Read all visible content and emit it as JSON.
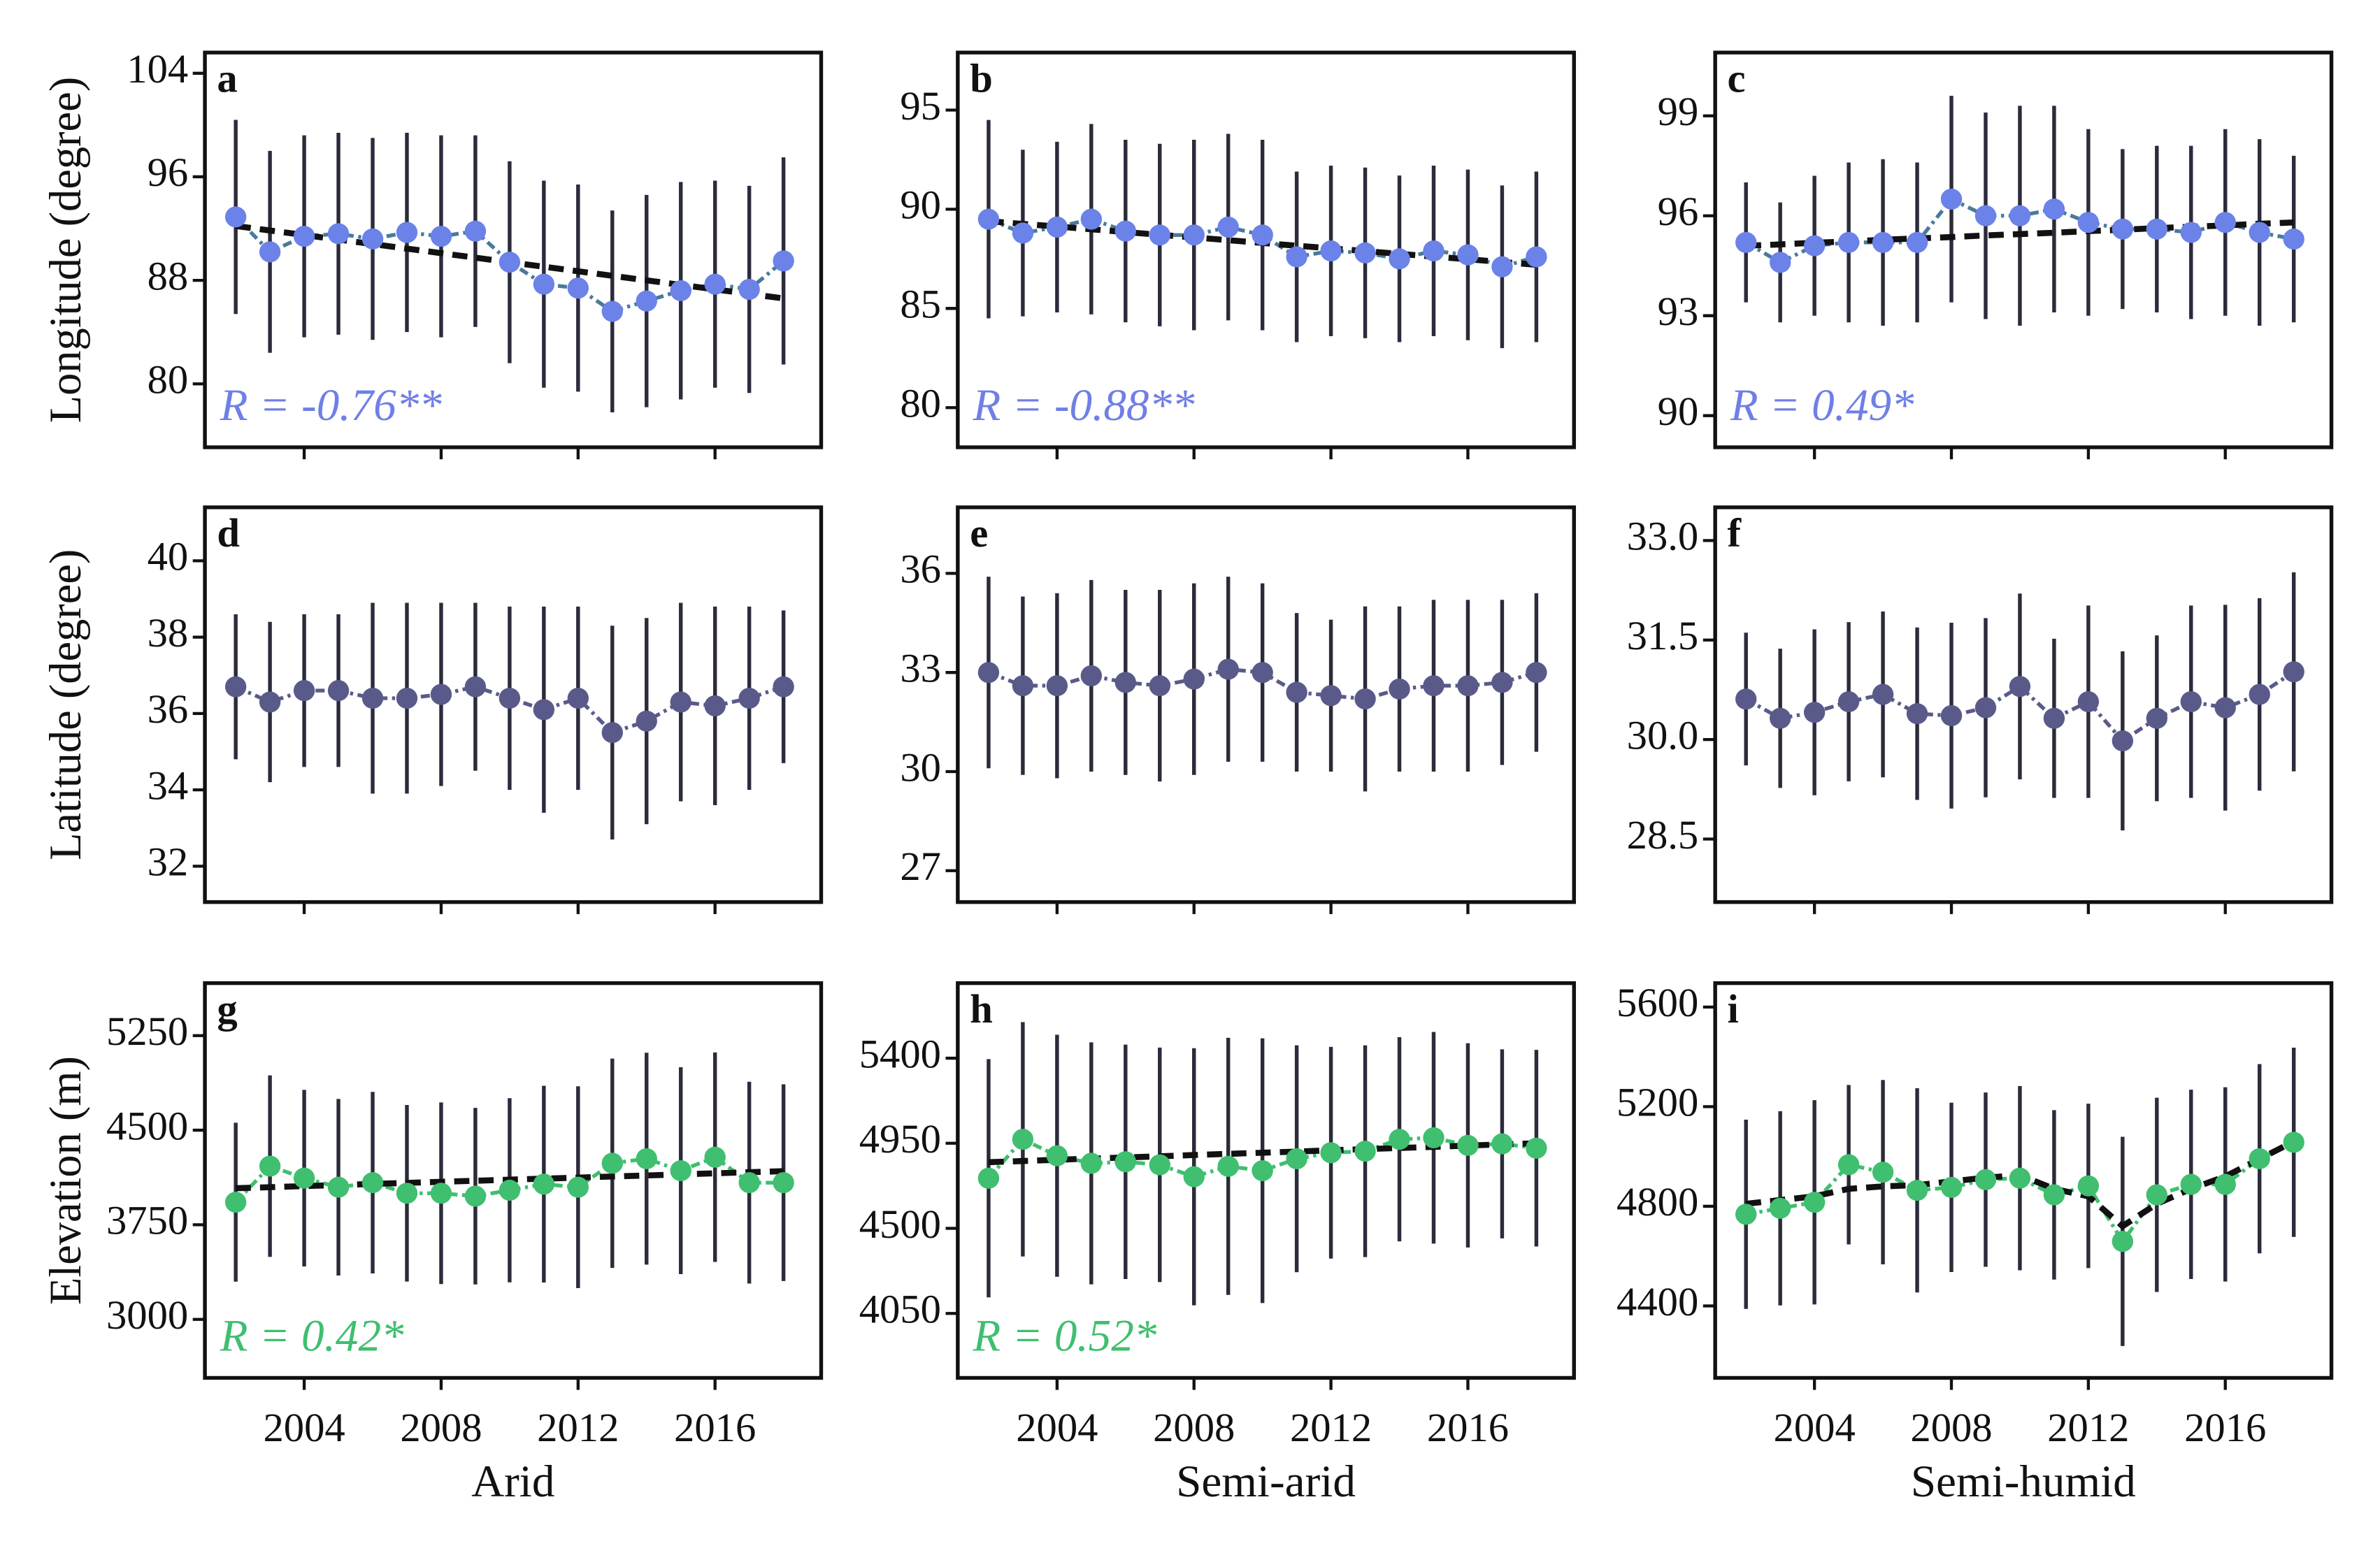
{
  "chart_data": [
    {
      "type": "line",
      "label": "a",
      "ylabel": "Longitude (degree)",
      "annotation": "R = -0.76**",
      "annotation_color": "#6f7fe6",
      "color": "#6b82e8",
      "line_color": "#4a7a9a",
      "x": [
        2002,
        2003,
        2004,
        2005,
        2006,
        2007,
        2008,
        2009,
        2010,
        2011,
        2012,
        2013,
        2014,
        2015,
        2016,
        2017,
        2018
      ],
      "xlim": [
        2001.1,
        2019.1
      ],
      "xticks": [
        2004,
        2008,
        2012,
        2016
      ],
      "xtick_labels": false,
      "ylim": [
        75.1,
        105.6
      ],
      "yticks": [
        80,
        88,
        96,
        104
      ],
      "values": [
        92.9,
        90.2,
        91.4,
        91.6,
        91.2,
        91.7,
        91.4,
        91.8,
        89.4,
        87.7,
        87.4,
        85.6,
        86.4,
        87.2,
        87.7,
        87.3,
        89.5
      ],
      "errors": [
        7.5,
        7.8,
        7.8,
        7.8,
        7.8,
        7.7,
        7.8,
        7.4,
        7.8,
        8,
        8,
        7.8,
        8.2,
        8.4,
        8,
        8,
        8
      ],
      "trend": [
        92.2,
        91.85,
        91.5,
        91.15,
        90.8,
        90.45,
        90.1,
        89.75,
        89.4,
        89.05,
        88.7,
        88.35,
        88.0,
        87.65,
        87.3,
        86.95,
        86.6
      ]
    },
    {
      "type": "line",
      "label": "b",
      "annotation": "R = -0.88**",
      "annotation_color": "#6f7fe6",
      "color": "#6b82e8",
      "line_color": "#4a7a9a",
      "x": [
        2002,
        2003,
        2004,
        2005,
        2006,
        2007,
        2008,
        2009,
        2010,
        2011,
        2012,
        2013,
        2014,
        2015,
        2016,
        2017,
        2018
      ],
      "xlim": [
        2001.1,
        2019.1
      ],
      "xticks": [
        2004,
        2008,
        2012,
        2016
      ],
      "xtick_labels": false,
      "ylim": [
        78.0,
        97.9
      ],
      "yticks": [
        80,
        85,
        90,
        95
      ],
      "values": [
        89.5,
        88.8,
        89.1,
        89.5,
        88.9,
        88.7,
        88.7,
        89.1,
        88.7,
        87.6,
        87.9,
        87.8,
        87.5,
        87.9,
        87.7,
        87.1,
        87.6
      ],
      "errors": [
        5,
        4.2,
        4.3,
        4.8,
        4.6,
        4.6,
        4.8,
        4.7,
        4.8,
        4.3,
        4.3,
        4.3,
        4.2,
        4.3,
        4.3,
        4.1,
        4.3
      ],
      "trend": [
        89.4,
        89.26,
        89.13,
        88.99,
        88.85,
        88.71,
        88.58,
        88.44,
        88.3,
        88.16,
        88.03,
        87.89,
        87.75,
        87.61,
        87.48,
        87.34,
        87.2
      ]
    },
    {
      "type": "line",
      "label": "c",
      "annotation": "R = 0.49*",
      "annotation_color": "#6f7fe6",
      "color": "#6b82e8",
      "line_color": "#4a7a9a",
      "x": [
        2002,
        2003,
        2004,
        2005,
        2006,
        2007,
        2008,
        2009,
        2010,
        2011,
        2012,
        2013,
        2014,
        2015,
        2016,
        2017,
        2018
      ],
      "xlim": [
        2001.1,
        2019.1
      ],
      "xticks": [
        2004,
        2008,
        2012,
        2016
      ],
      "xtick_labels": false,
      "ylim": [
        89.05,
        100.9
      ],
      "yticks": [
        90,
        93,
        96,
        99
      ],
      "values": [
        95.2,
        94.6,
        95.1,
        95.2,
        95.2,
        95.2,
        96.5,
        96.0,
        96.0,
        96.2,
        95.8,
        95.6,
        95.6,
        95.5,
        95.8,
        95.5,
        95.3
      ],
      "errors": [
        1.8,
        1.8,
        2.1,
        2.4,
        2.5,
        2.4,
        3.1,
        3.1,
        3.3,
        3.1,
        2.8,
        2.4,
        2.5,
        2.6,
        2.8,
        2.8,
        2.5
      ],
      "trend": [
        95.1,
        95.14,
        95.19,
        95.23,
        95.28,
        95.32,
        95.36,
        95.41,
        95.45,
        95.49,
        95.54,
        95.58,
        95.63,
        95.67,
        95.71,
        95.76,
        95.8
      ]
    },
    {
      "type": "line",
      "label": "d",
      "ylabel": "Latitude (degree)",
      "color": "#5a5a8a",
      "line_color": "#5a5a8a",
      "x": [
        2002,
        2003,
        2004,
        2005,
        2006,
        2007,
        2008,
        2009,
        2010,
        2011,
        2012,
        2013,
        2014,
        2015,
        2016,
        2017,
        2018
      ],
      "xlim": [
        2001.1,
        2019.1
      ],
      "xticks": [
        2004,
        2008,
        2012,
        2016
      ],
      "xtick_labels": false,
      "ylim": [
        31.06,
        41.4
      ],
      "yticks": [
        32,
        34,
        36,
        38,
        40
      ],
      "values": [
        36.7,
        36.3,
        36.6,
        36.6,
        36.4,
        36.4,
        36.5,
        36.7,
        36.4,
        36.1,
        36.4,
        35.5,
        35.8,
        36.3,
        36.2,
        36.4,
        36.7
      ],
      "errors": [
        1.9,
        2.1,
        2,
        2,
        2.5,
        2.5,
        2.4,
        2.2,
        2.4,
        2.7,
        2.4,
        2.8,
        2.7,
        2.6,
        2.6,
        2.4,
        2
      ]
    },
    {
      "type": "line",
      "label": "e",
      "color": "#5a5a8a",
      "line_color": "#5a5a8a",
      "x": [
        2002,
        2003,
        2004,
        2005,
        2006,
        2007,
        2008,
        2009,
        2010,
        2011,
        2012,
        2013,
        2014,
        2015,
        2016,
        2017,
        2018
      ],
      "xlim": [
        2001.1,
        2019.1
      ],
      "xticks": [
        2004,
        2008,
        2012,
        2016
      ],
      "xtick_labels": false,
      "ylim": [
        26.05,
        38.0
      ],
      "yticks": [
        27,
        30,
        33,
        36
      ],
      "values": [
        33.0,
        32.6,
        32.6,
        32.9,
        32.7,
        32.6,
        32.8,
        33.1,
        33.0,
        32.4,
        32.3,
        32.2,
        32.5,
        32.6,
        32.6,
        32.7,
        33.0
      ],
      "errors": [
        2.9,
        2.7,
        2.8,
        2.9,
        2.8,
        2.9,
        2.9,
        2.8,
        2.7,
        2.4,
        2.3,
        2.8,
        2.5,
        2.6,
        2.6,
        2.5,
        2.4
      ]
    },
    {
      "type": "line",
      "label": "f",
      "color": "#5a5a8a",
      "line_color": "#5a5a8a",
      "x": [
        2002,
        2003,
        2004,
        2005,
        2006,
        2007,
        2008,
        2009,
        2010,
        2011,
        2012,
        2013,
        2014,
        2015,
        2016,
        2017,
        2018
      ],
      "xlim": [
        2001.1,
        2019.1
      ],
      "xticks": [
        2004,
        2008,
        2012,
        2016
      ],
      "xtick_labels": false,
      "ylim": [
        27.55,
        33.5
      ],
      "yticks": [
        28.5,
        {
          "value": 30,
          "label": "30.0"
        },
        31.5,
        {
          "value": 33,
          "label": "33.0"
        }
      ],
      "values": [
        30.61,
        30.32,
        30.41,
        30.57,
        30.68,
        30.39,
        30.36,
        30.48,
        30.8,
        30.32,
        30.57,
        29.98,
        30.32,
        30.57,
        30.48,
        30.68,
        31.02
      ],
      "errors": [
        1.0,
        1.05,
        1.25,
        1.2,
        1.25,
        1.3,
        1.4,
        1.35,
        1.4,
        1.2,
        1.45,
        1.35,
        1.25,
        1.45,
        1.55,
        1.45,
        1.5
      ]
    },
    {
      "type": "line",
      "label": "g",
      "ylabel": "Elevation (m)",
      "xlabel": "Arid",
      "annotation": "R = 0.42*",
      "annotation_color": "#3fbf6f",
      "color": "#3fbf6f",
      "line_color": "#3fbf6f",
      "x": [
        2002,
        2003,
        2004,
        2005,
        2006,
        2007,
        2008,
        2009,
        2010,
        2011,
        2012,
        2013,
        2014,
        2015,
        2016,
        2017,
        2018
      ],
      "xlim": [
        2001.1,
        2019.1
      ],
      "xticks": [
        2004,
        2008,
        2012,
        2016
      ],
      "xtick_labels": true,
      "ylim": [
        2536,
        5666
      ],
      "yticks": [
        3000,
        3750,
        4500,
        5250
      ],
      "values": [
        3929,
        4215,
        4120,
        4048,
        4084,
        4000,
        4000,
        3977,
        4024,
        4072,
        4048,
        4238,
        4274,
        4179,
        4286,
        4084,
        4084
      ],
      "errors": [
        630,
        720,
        700,
        700,
        720,
        700,
        720,
        700,
        730,
        780,
        800,
        830,
        840,
        820,
        830,
        800,
        780
      ],
      "trend": [
        4040,
        4048,
        4057,
        4065,
        4074,
        4082,
        4091,
        4099,
        4108,
        4116,
        4124,
        4133,
        4141,
        4150,
        4158,
        4167,
        4175
      ]
    },
    {
      "type": "line",
      "label": "h",
      "xlabel": "Semi-arid",
      "annotation": "R = 0.52*",
      "annotation_color": "#3fbf6f",
      "color": "#3fbf6f",
      "line_color": "#3fbf6f",
      "x": [
        2002,
        2003,
        2004,
        2005,
        2006,
        2007,
        2008,
        2009,
        2010,
        2011,
        2012,
        2013,
        2014,
        2015,
        2016,
        2017,
        2018
      ],
      "xlim": [
        2001.1,
        2019.1
      ],
      "xticks": [
        2004,
        2008,
        2012,
        2016
      ],
      "xtick_labels": true,
      "ylim": [
        3709,
        5797
      ],
      "yticks": [
        4050,
        4500,
        4950,
        5400
      ],
      "values": [
        4765,
        4971,
        4884,
        4844,
        4852,
        4836,
        4773,
        4828,
        4805,
        4868,
        4900,
        4908,
        4971,
        4979,
        4939,
        4947,
        4924
      ],
      "errors": [
        630,
        620,
        640,
        640,
        620,
        620,
        680,
        680,
        700,
        600,
        560,
        560,
        540,
        560,
        540,
        500,
        520
      ],
      "trend": [
        4850,
        4856,
        4863,
        4869,
        4875,
        4881,
        4888,
        4894,
        4900,
        4906,
        4913,
        4919,
        4925,
        4931,
        4938,
        4944,
        4950
      ]
    },
    {
      "type": "line",
      "label": "i",
      "xlabel": "Semi-humid",
      "color": "#3fbf6f",
      "line_color": "#3fbf6f",
      "x": [
        2002,
        2003,
        2004,
        2005,
        2006,
        2007,
        2008,
        2009,
        2010,
        2011,
        2012,
        2013,
        2014,
        2015,
        2016,
        2017,
        2018
      ],
      "xlim": [
        2001.1,
        2019.1
      ],
      "xticks": [
        2004,
        2008,
        2012,
        2016
      ],
      "xtick_labels": true,
      "ylim": [
        4111,
        5696
      ],
      "yticks": [
        4400,
        4800,
        5200,
        5600
      ],
      "values": [
        4768,
        4792,
        4816,
        4967,
        4937,
        4864,
        4876,
        4907,
        4913,
        4846,
        4882,
        4659,
        4846,
        4888,
        4888,
        4991,
        5057
      ],
      "errors": [
        380,
        390,
        410,
        320,
        370,
        410,
        340,
        350,
        370,
        340,
        330,
        420,
        390,
        380,
        390,
        380,
        380
      ],
      "trend": [
        4810,
        4825,
        4840,
        4870,
        4880,
        4885,
        4900,
        4915,
        4925,
        4870,
        4840,
        4720,
        4810,
        4870,
        4920,
        4990,
        5060
      ]
    }
  ]
}
